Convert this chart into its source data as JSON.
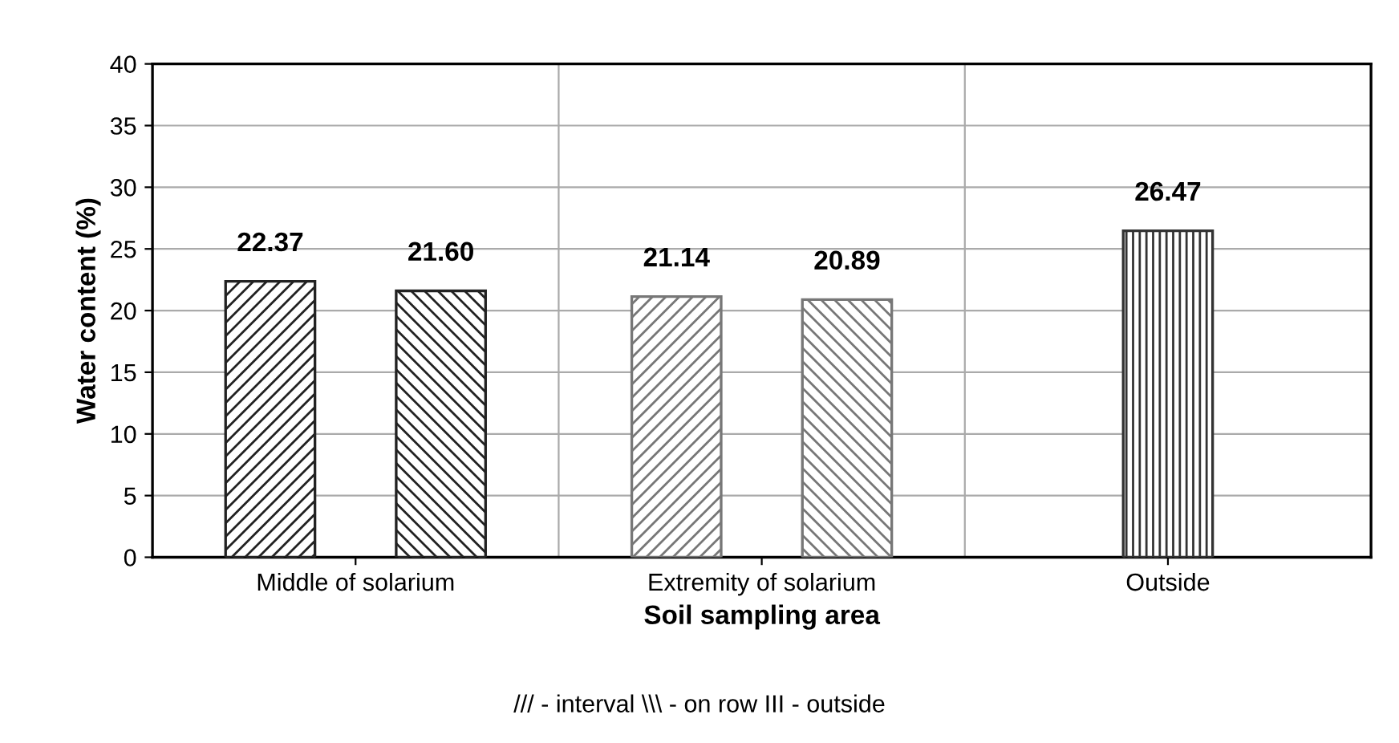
{
  "chart_data": {
    "type": "bar",
    "xlabel": "Soil sampling area",
    "ylabel": "Water content (%)",
    "categories": [
      "Middle of solarium",
      "Extremity of solarium",
      "Outside"
    ],
    "series": [
      {
        "colors": [
          "#222222",
          "#777777",
          null
        ],
        "values": [
          22.37,
          21.14,
          null
        ],
        "value_labels": [
          "22.37",
          "21.14",
          null
        ]
      },
      {
        "colors": [
          "#222222",
          "#777777",
          null
        ],
        "values": [
          21.6,
          20.89,
          null
        ],
        "value_labels": [
          "21.60",
          "20.89",
          null
        ]
      },
      {
        "colors": [
          null,
          null,
          "#333333"
        ],
        "values": [
          null,
          null,
          26.47
        ],
        "value_labels": [
          null,
          null,
          "26.47"
        ]
      }
    ],
    "ylim": [
      0,
      40
    ],
    "yticks": [
      0,
      5,
      10,
      15,
      20,
      25,
      30,
      35,
      40
    ],
    "grid": true,
    "legend": false,
    "annotations": [
      "/// - interval \\\\\\ - on row III - outside"
    ]
  }
}
